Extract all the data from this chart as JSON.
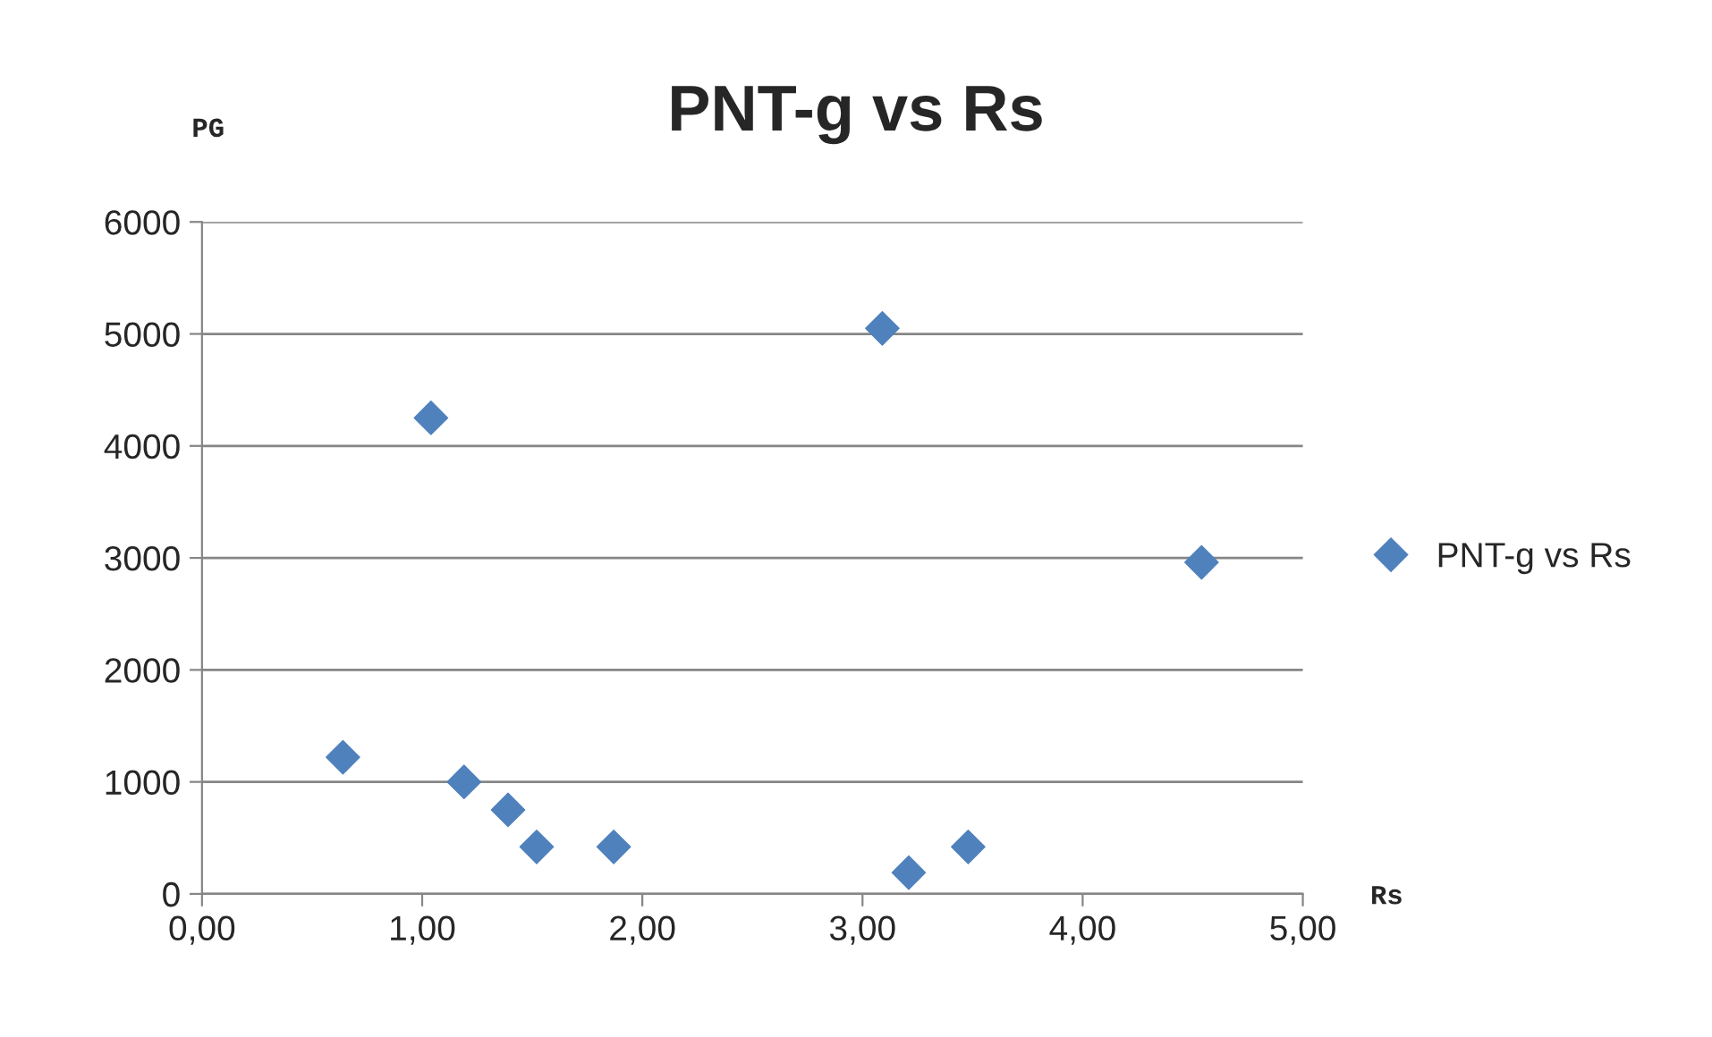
{
  "chart_data": {
    "type": "scatter",
    "title": "PNT-g vs Rs",
    "xlabel": "Rs",
    "ylabel": "PG",
    "x": [
      0.64,
      1.04,
      1.19,
      1.39,
      1.52,
      1.87,
      3.09,
      3.21,
      3.48,
      4.54
    ],
    "series": [
      {
        "name": "PNT-g vs Rs",
        "color": "#4f81bd",
        "values": [
          1220,
          4250,
          1000,
          750,
          420,
          420,
          5050,
          190,
          420,
          2960
        ]
      }
    ],
    "xlim": [
      0,
      5
    ],
    "ylim": [
      0,
      6000
    ],
    "xticks": [
      {
        "value": 0,
        "label": "0,00"
      },
      {
        "value": 1,
        "label": "1,00"
      },
      {
        "value": 2,
        "label": "2,00"
      },
      {
        "value": 3,
        "label": "3,00"
      },
      {
        "value": 4,
        "label": "4,00"
      },
      {
        "value": 5,
        "label": "5,00"
      }
    ],
    "yticks": [
      0,
      1000,
      2000,
      3000,
      4000,
      5000,
      6000
    ],
    "grid": "y",
    "legend": "right",
    "marker": "diamond"
  }
}
